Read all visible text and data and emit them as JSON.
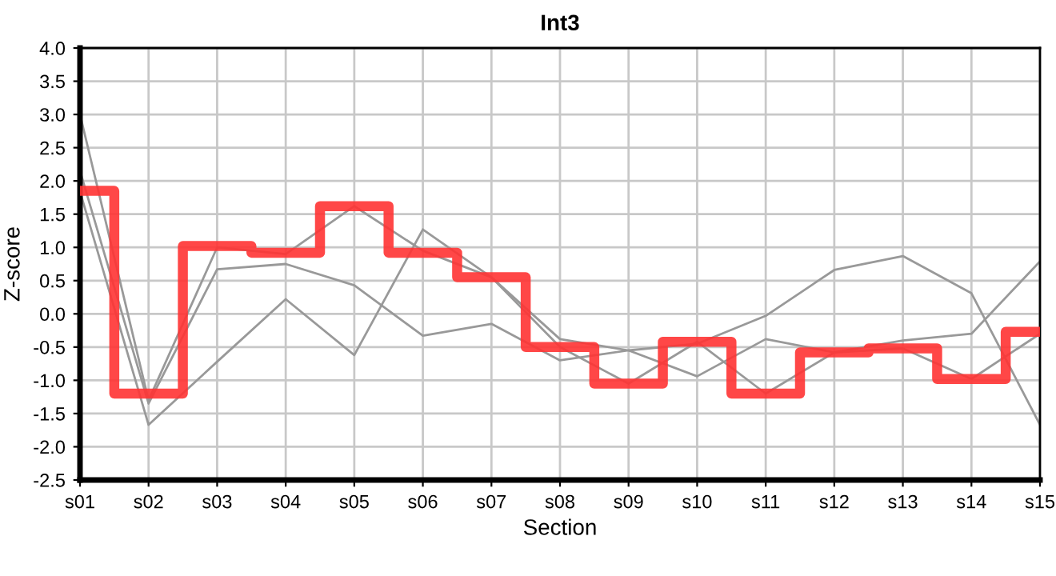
{
  "chart_data": {
    "type": "line",
    "title": "Int3",
    "xlabel": "Section",
    "ylabel": "Z-score",
    "categories": [
      "s01",
      "s02",
      "s03",
      "s04",
      "s05",
      "s06",
      "s07",
      "s08",
      "s09",
      "s10",
      "s11",
      "s12",
      "s13",
      "s14",
      "s15"
    ],
    "series": [
      {
        "color": "#999999",
        "values": [
          3.0,
          -1.3,
          1.0,
          0.9,
          1.62,
          0.95,
          0.55,
          -0.5,
          -1.05,
          -0.42,
          -1.2,
          -0.58,
          -0.52,
          -0.98,
          -0.3
        ]
      },
      {
        "color": "#999999",
        "values": [
          2.15,
          -1.35,
          0.67,
          0.75,
          0.43,
          -0.33,
          -0.15,
          -0.7,
          -0.55,
          -0.94,
          -0.38,
          -0.58,
          -0.4,
          -0.3,
          0.79
        ]
      },
      {
        "color": "#999999",
        "values": [
          1.84,
          -1.67,
          -0.72,
          0.22,
          -0.62,
          1.27,
          0.55,
          -0.38,
          -0.55,
          -0.45,
          -0.03,
          0.66,
          0.87,
          0.31,
          -1.67
        ]
      },
      {
        "type": "step",
        "color": "#ff3333",
        "values": [
          1.85,
          -1.2,
          1.02,
          0.92,
          1.62,
          0.92,
          0.55,
          -0.5,
          -1.05,
          -0.42,
          -1.2,
          -0.58,
          -0.52,
          -0.98,
          -0.27
        ]
      }
    ],
    "ylim": [
      -2.5,
      4.0
    ],
    "yticks": [
      {
        "value": -2.5,
        "label": "-2.5"
      },
      {
        "value": -2.0,
        "label": "-2.0"
      },
      {
        "value": -1.5,
        "label": "-1.5"
      },
      {
        "value": -1.0,
        "label": "-1.0"
      },
      {
        "value": -0.5,
        "label": "-0.5"
      },
      {
        "value": 0.0,
        "label": "0.0"
      },
      {
        "value": 0.5,
        "label": "0.5"
      },
      {
        "value": 1.0,
        "label": "1.0"
      },
      {
        "value": 1.5,
        "label": "1.5"
      },
      {
        "value": 2.0,
        "label": "2.0"
      },
      {
        "value": 2.5,
        "label": "2.5"
      },
      {
        "value": 3.0,
        "label": "3.0"
      },
      {
        "value": 3.5,
        "label": "3.5"
      },
      {
        "value": 4.0,
        "label": "4.0"
      }
    ],
    "grid": true,
    "legend": false
  }
}
